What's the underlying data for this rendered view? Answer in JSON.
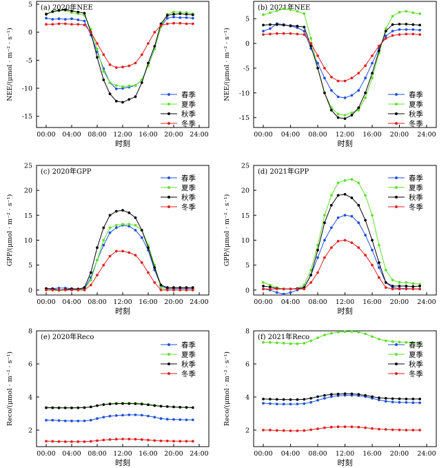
{
  "x_tick_labels": [
    "00:00",
    "04:00",
    "08:00",
    "12:00",
    "16:00",
    "20:00",
    "24:00"
  ],
  "season_colors": {
    "spring": "#1f4fe0",
    "summer": "#5ee02b",
    "autumn": "#000000",
    "winter": "#e01f1f"
  },
  "chart_data": [
    {
      "type": "line",
      "panel_title": "(a) 2020年NEE",
      "ylabel": "NEE/(μmol · m⁻² · s⁻¹)",
      "xlabel": "时刻",
      "ylim": [
        -17,
        5.5
      ],
      "yticks": [
        5,
        0,
        -5,
        -10,
        -15
      ],
      "x": [
        0,
        1,
        2,
        3,
        4,
        5,
        6,
        7,
        8,
        9,
        10,
        11,
        12,
        13,
        14,
        15,
        16,
        17,
        18,
        19,
        20,
        21,
        22,
        23
      ],
      "legend": [
        "春季",
        "夏季",
        "秋季",
        "冬季"
      ],
      "series": [
        {
          "name": "春季",
          "color": "#1f4fe0",
          "values": [
            2.5,
            2.3,
            2.4,
            2.3,
            2.4,
            2.2,
            2.0,
            -0.5,
            -3.5,
            -6.5,
            -9.0,
            -10.1,
            -10.0,
            -9.8,
            -9.5,
            -8.5,
            -6.0,
            -3.0,
            1.0,
            2.5,
            2.7,
            2.6,
            2.6,
            2.5
          ]
        },
        {
          "name": "夏季",
          "color": "#5ee02b",
          "values": [
            3.3,
            3.6,
            3.8,
            3.9,
            3.5,
            3.3,
            3.0,
            0.5,
            -3.0,
            -7.0,
            -9.0,
            -9.5,
            -9.7,
            -9.6,
            -9.5,
            -8.5,
            -6.0,
            -3.0,
            1.0,
            3.2,
            3.6,
            3.6,
            3.5,
            3.3
          ]
        },
        {
          "name": "秋季",
          "color": "#000000",
          "values": [
            3.2,
            3.7,
            3.9,
            4.0,
            3.8,
            3.6,
            3.4,
            0.0,
            -4.5,
            -8.5,
            -11.0,
            -12.3,
            -12.5,
            -12.0,
            -11.5,
            -9.0,
            -5.5,
            -2.5,
            1.5,
            3.0,
            3.2,
            3.3,
            3.2,
            3.1
          ]
        },
        {
          "name": "冬季",
          "color": "#e01f1f",
          "values": [
            1.4,
            1.4,
            1.5,
            1.5,
            1.4,
            1.4,
            1.3,
            0.0,
            -2.0,
            -4.0,
            -5.8,
            -6.3,
            -6.2,
            -6.0,
            -5.5,
            -4.0,
            -2.0,
            0.0,
            1.2,
            1.5,
            1.6,
            1.6,
            1.5,
            1.5
          ]
        }
      ]
    },
    {
      "type": "line",
      "panel_title": "(b) 2021年NEE",
      "ylabel": "NEE/(μmol · m⁻² · s⁻¹)",
      "xlabel": "时刻",
      "ylim": [
        -17,
        8.5
      ],
      "yticks": [
        5,
        0,
        -5,
        -10,
        -15
      ],
      "x": [
        0,
        1,
        2,
        3,
        4,
        5,
        6,
        7,
        8,
        9,
        10,
        11,
        12,
        13,
        14,
        15,
        16,
        17,
        18,
        19,
        20,
        21,
        22,
        23
      ],
      "legend": [
        "春季",
        "夏季",
        "秋季",
        "冬季"
      ],
      "series": [
        {
          "name": "春季",
          "color": "#1f4fe0",
          "values": [
            2.5,
            3.0,
            4.0,
            3.8,
            3.5,
            3.2,
            2.5,
            -1.0,
            -4.0,
            -7.0,
            -9.5,
            -10.8,
            -11.0,
            -10.5,
            -9.5,
            -7.0,
            -4.0,
            -1.0,
            1.5,
            2.5,
            2.8,
            2.8,
            2.8,
            2.7
          ]
        },
        {
          "name": "夏季",
          "color": "#5ee02b",
          "values": [
            5.8,
            6.2,
            6.6,
            7.0,
            6.8,
            6.5,
            6.0,
            1.0,
            -5.0,
            -10.0,
            -13.0,
            -14.3,
            -14.5,
            -14.0,
            -13.5,
            -11.0,
            -7.0,
            -2.0,
            3.0,
            5.5,
            6.3,
            6.5,
            6.2,
            6.0
          ]
        },
        {
          "name": "秋季",
          "color": "#000000",
          "values": [
            3.7,
            3.8,
            3.8,
            3.7,
            3.6,
            3.5,
            3.3,
            -0.5,
            -5.0,
            -10.0,
            -13.5,
            -15.0,
            -15.2,
            -14.5,
            -13.0,
            -10.0,
            -6.0,
            -1.5,
            2.5,
            3.8,
            3.9,
            3.9,
            3.8,
            3.7
          ]
        },
        {
          "name": "冬季",
          "color": "#e01f1f",
          "values": [
            1.8,
            1.9,
            2.0,
            2.0,
            2.0,
            1.9,
            1.8,
            0.0,
            -2.5,
            -5.0,
            -6.8,
            -7.6,
            -7.6,
            -7.0,
            -6.0,
            -4.5,
            -2.5,
            -0.5,
            1.0,
            1.6,
            1.8,
            1.9,
            1.9,
            1.8
          ]
        }
      ]
    },
    {
      "type": "line",
      "panel_title": "(c) 2020年GPP",
      "ylabel": "GPP/(μmol · m⁻² · s⁻¹)",
      "xlabel": "时刻",
      "ylim": [
        -1,
        25
      ],
      "yticks": [
        0,
        5,
        10,
        15,
        20,
        25
      ],
      "x": [
        0,
        1,
        2,
        3,
        4,
        5,
        6,
        7,
        8,
        9,
        10,
        11,
        12,
        13,
        14,
        15,
        16,
        17,
        18,
        19,
        20,
        21,
        22,
        23
      ],
      "legend": [
        "春季",
        "夏季",
        "秋季",
        "冬季"
      ],
      "series": [
        {
          "name": "春季",
          "color": "#1f4fe0",
          "values": [
            0.3,
            0.3,
            0.4,
            0.4,
            0.3,
            0.2,
            0.3,
            2.5,
            6.0,
            9.0,
            11.5,
            12.5,
            13.0,
            12.8,
            12.0,
            10.5,
            8.0,
            4.0,
            0.8,
            0.3,
            0.3,
            0.3,
            0.3,
            0.3
          ]
        },
        {
          "name": "夏季",
          "color": "#5ee02b",
          "values": [
            0.0,
            0.0,
            -0.1,
            0.0,
            0.0,
            0.0,
            0.2,
            2.0,
            6.0,
            10.0,
            12.5,
            13.0,
            13.2,
            13.2,
            13.0,
            12.0,
            9.0,
            5.0,
            0.5,
            0.0,
            0.0,
            0.0,
            0.0,
            0.0
          ]
        },
        {
          "name": "秋季",
          "color": "#000000",
          "values": [
            0.3,
            0.2,
            0.0,
            0.1,
            0.2,
            0.2,
            0.5,
            3.5,
            8.5,
            12.5,
            15.0,
            15.8,
            16.0,
            15.5,
            14.5,
            12.0,
            8.5,
            4.5,
            1.0,
            0.5,
            0.5,
            0.5,
            0.5,
            0.5
          ]
        },
        {
          "name": "冬季",
          "color": "#e01f1f",
          "values": [
            0.0,
            0.0,
            0.0,
            0.0,
            0.0,
            0.0,
            0.0,
            1.0,
            3.0,
            5.0,
            6.8,
            7.8,
            7.8,
            7.5,
            7.0,
            5.5,
            3.5,
            1.5,
            0.0,
            0.0,
            0.0,
            0.0,
            0.0,
            0.0
          ]
        }
      ]
    },
    {
      "type": "line",
      "panel_title": "(d) 2021年GPP",
      "ylabel": "GPP/(μmol · m⁻² · s⁻¹)",
      "xlabel": "时刻",
      "ylim": [
        -1,
        25
      ],
      "yticks": [
        0,
        5,
        10,
        15,
        20,
        25
      ],
      "x": [
        0,
        1,
        2,
        3,
        4,
        5,
        6,
        7,
        8,
        9,
        10,
        11,
        12,
        13,
        14,
        15,
        16,
        17,
        18,
        19,
        20,
        21,
        22,
        23
      ],
      "legend": [
        "春季",
        "夏季",
        "秋季",
        "冬季"
      ],
      "series": [
        {
          "name": "春季",
          "color": "#1f4fe0",
          "values": [
            0.2,
            0.0,
            -0.5,
            -0.8,
            -0.5,
            0.0,
            0.5,
            3.0,
            6.5,
            10.0,
            12.5,
            14.5,
            15.0,
            14.8,
            13.5,
            11.0,
            8.0,
            4.5,
            1.5,
            0.5,
            0.3,
            0.3,
            0.2,
            0.2
          ]
        },
        {
          "name": "夏季",
          "color": "#5ee02b",
          "values": [
            1.5,
            1.0,
            0.5,
            0.2,
            0.2,
            0.3,
            1.0,
            4.0,
            9.0,
            15.0,
            19.0,
            21.5,
            22.0,
            22.2,
            21.5,
            19.0,
            15.0,
            9.0,
            4.0,
            2.0,
            1.5,
            1.5,
            1.3,
            1.2
          ]
        },
        {
          "name": "秋季",
          "color": "#000000",
          "values": [
            0.8,
            0.6,
            0.3,
            0.2,
            0.2,
            0.3,
            0.5,
            3.0,
            8.0,
            13.5,
            17.0,
            19.0,
            19.2,
            18.5,
            17.0,
            14.0,
            10.0,
            5.5,
            1.5,
            0.8,
            0.8,
            0.8,
            0.7,
            0.8
          ]
        },
        {
          "name": "冬季",
          "color": "#e01f1f",
          "values": [
            0.2,
            0.2,
            0.2,
            0.2,
            0.2,
            0.2,
            0.2,
            1.5,
            3.5,
            6.5,
            8.5,
            9.8,
            10.0,
            9.5,
            8.5,
            7.0,
            5.0,
            2.5,
            0.5,
            0.2,
            0.2,
            0.2,
            0.2,
            0.2
          ]
        }
      ]
    },
    {
      "type": "line",
      "panel_title": "(e) 2020年Reco",
      "ylabel": "Reco/(μmol · m⁻² · s⁻¹)",
      "xlabel": "时刻",
      "ylim": [
        1,
        8
      ],
      "yticks": [
        2,
        4,
        6,
        8
      ],
      "x": [
        0,
        1,
        2,
        3,
        4,
        5,
        6,
        7,
        8,
        9,
        10,
        11,
        12,
        13,
        14,
        15,
        16,
        17,
        18,
        19,
        20,
        21,
        22,
        23
      ],
      "legend": [
        "春季",
        "夏季",
        "秋季",
        "冬季"
      ],
      "series": [
        {
          "name": "春季",
          "color": "#1f4fe0",
          "values": [
            2.6,
            2.6,
            2.58,
            2.56,
            2.55,
            2.55,
            2.56,
            2.6,
            2.7,
            2.78,
            2.84,
            2.88,
            2.9,
            2.92,
            2.92,
            2.9,
            2.85,
            2.78,
            2.7,
            2.66,
            2.64,
            2.63,
            2.62,
            2.62
          ]
        },
        {
          "name": "夏季",
          "color": "#5ee02b",
          "values": [
            3.37,
            3.37,
            3.36,
            3.35,
            3.35,
            3.35,
            3.36,
            3.4,
            3.48,
            3.55,
            3.6,
            3.62,
            3.63,
            3.63,
            3.62,
            3.6,
            3.55,
            3.5,
            3.45,
            3.42,
            3.4,
            3.39,
            3.38,
            3.37
          ]
        },
        {
          "name": "秋季",
          "color": "#000000",
          "values": [
            3.35,
            3.35,
            3.34,
            3.34,
            3.34,
            3.35,
            3.36,
            3.4,
            3.48,
            3.54,
            3.58,
            3.6,
            3.6,
            3.6,
            3.59,
            3.57,
            3.53,
            3.48,
            3.44,
            3.42,
            3.4,
            3.38,
            3.37,
            3.36
          ]
        },
        {
          "name": "冬季",
          "color": "#e01f1f",
          "values": [
            1.33,
            1.32,
            1.31,
            1.3,
            1.3,
            1.3,
            1.3,
            1.32,
            1.36,
            1.4,
            1.43,
            1.45,
            1.46,
            1.46,
            1.45,
            1.43,
            1.4,
            1.37,
            1.35,
            1.34,
            1.33,
            1.33,
            1.33,
            1.33
          ]
        }
      ]
    },
    {
      "type": "line",
      "panel_title": "(f) 2021年Reco",
      "ylabel": "Reco/(μmol · m⁻² · s⁻¹)",
      "xlabel": "时刻",
      "ylim": [
        1,
        8
      ],
      "yticks": [
        2,
        4,
        6,
        8
      ],
      "x": [
        0,
        1,
        2,
        3,
        4,
        5,
        6,
        7,
        8,
        9,
        10,
        11,
        12,
        13,
        14,
        15,
        16,
        17,
        18,
        19,
        20,
        21,
        22,
        23
      ],
      "legend": [
        "春季",
        "夏季",
        "秋季",
        "冬季"
      ],
      "series": [
        {
          "name": "春季",
          "color": "#1f4fe0",
          "values": [
            3.62,
            3.6,
            3.58,
            3.57,
            3.57,
            3.58,
            3.6,
            3.68,
            3.8,
            3.92,
            4.02,
            4.08,
            4.1,
            4.1,
            4.08,
            4.02,
            3.92,
            3.82,
            3.74,
            3.7,
            3.68,
            3.67,
            3.66,
            3.65
          ]
        },
        {
          "name": "夏季",
          "color": "#5ee02b",
          "values": [
            7.3,
            7.3,
            7.28,
            7.25,
            7.22,
            7.22,
            7.25,
            7.4,
            7.58,
            7.75,
            7.85,
            7.92,
            7.95,
            7.96,
            7.92,
            7.82,
            7.65,
            7.5,
            7.4,
            7.35,
            7.32,
            7.3,
            7.28,
            7.27
          ]
        },
        {
          "name": "秋季",
          "color": "#000000",
          "values": [
            3.88,
            3.87,
            3.86,
            3.85,
            3.84,
            3.84,
            3.86,
            3.92,
            4.02,
            4.1,
            4.16,
            4.18,
            4.2,
            4.19,
            4.16,
            4.1,
            4.02,
            3.95,
            3.92,
            3.9,
            3.89,
            3.88,
            3.88,
            3.88
          ]
        },
        {
          "name": "冬季",
          "color": "#e01f1f",
          "values": [
            2.0,
            2.0,
            1.98,
            1.97,
            1.96,
            1.96,
            1.97,
            2.02,
            2.08,
            2.14,
            2.18,
            2.2,
            2.2,
            2.2,
            2.18,
            2.14,
            2.1,
            2.06,
            2.04,
            2.02,
            2.01,
            2.0,
            2.0,
            2.0
          ]
        }
      ]
    }
  ]
}
